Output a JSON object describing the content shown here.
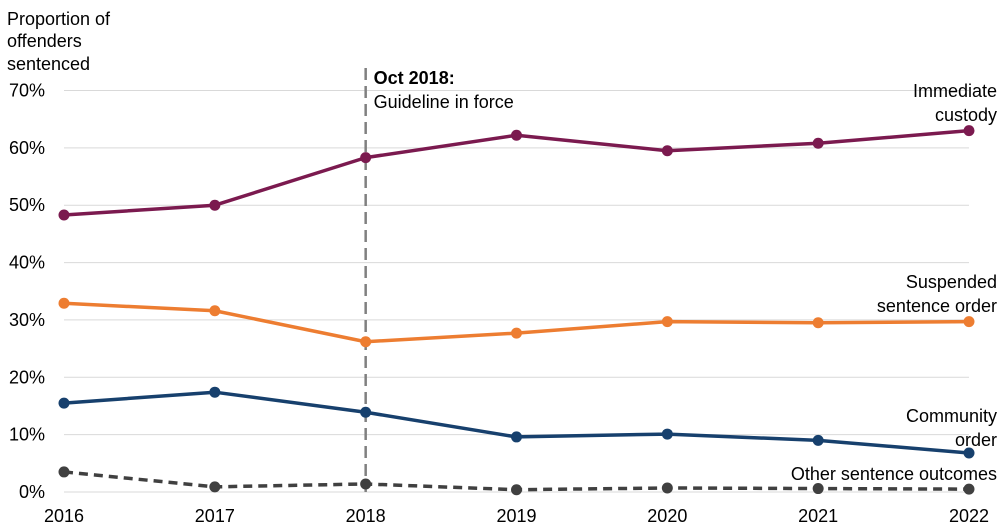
{
  "chart_data": {
    "type": "line",
    "title": "",
    "ylabel_lines": [
      "Proportion of",
      "offenders",
      "sentenced"
    ],
    "xlabel": "",
    "x": [
      "2016",
      "2017",
      "2018",
      "2019",
      "2020",
      "2021",
      "2022"
    ],
    "ylim": [
      0,
      70
    ],
    "yticks": [
      0,
      10,
      20,
      30,
      40,
      50,
      60,
      70
    ],
    "ytick_labels": [
      "0%",
      "10%",
      "20%",
      "30%",
      "40%",
      "50%",
      "60%",
      "70%"
    ],
    "grid": true,
    "series": [
      {
        "name": "Immediate custody",
        "label_lines": [
          "Immediate",
          "custody"
        ],
        "color": "#7b1a4f",
        "dashed": false,
        "values": [
          48.3,
          50.0,
          58.3,
          62.2,
          59.5,
          60.8,
          63.0
        ]
      },
      {
        "name": "Suspended sentence order",
        "label_lines": [
          "Suspended",
          "sentence order"
        ],
        "color": "#ed7d31",
        "dashed": false,
        "values": [
          32.9,
          31.6,
          26.2,
          27.7,
          29.7,
          29.5,
          29.7
        ]
      },
      {
        "name": "Community order",
        "label_lines": [
          "Community",
          "order"
        ],
        "color": "#17406d",
        "dashed": false,
        "values": [
          15.5,
          17.4,
          13.9,
          9.6,
          10.1,
          9.0,
          6.8
        ]
      },
      {
        "name": "Other sentence outcomes",
        "label_lines": [
          "Other sentence outcomes"
        ],
        "color": "#404040",
        "dashed": true,
        "values": [
          3.5,
          0.9,
          1.4,
          0.4,
          0.7,
          0.6,
          0.5
        ]
      }
    ],
    "annotations": [
      {
        "x": "2018",
        "title": "Oct 2018:",
        "text": "Guideline in force",
        "color": "#808080"
      }
    ]
  }
}
